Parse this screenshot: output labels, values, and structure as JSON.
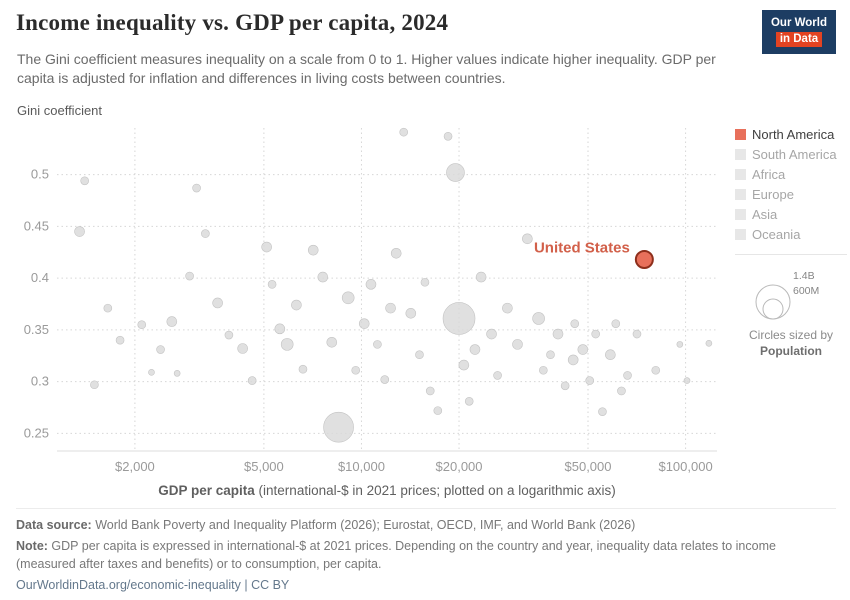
{
  "header": {
    "title": "Income inequality vs. GDP per capita, 2024",
    "subtitle": "The Gini coefficient measures inequality on a scale from 0 to 1. Higher values indicate higher inequality. GDP per capita is adjusted for inflation and differences in living costs between countries.",
    "logo": {
      "line1": "Our World",
      "line2": "in Data"
    }
  },
  "axes": {
    "y_label": "Gini coefficient",
    "x_label_bold": "GDP per capita",
    "x_label_rest": " (international-$ in 2021 prices; plotted on a logarithmic axis)"
  },
  "legend": {
    "items": [
      {
        "label": "North America",
        "color": "#e8705b",
        "active": true
      },
      {
        "label": "South America",
        "color": "#e7e7e7",
        "active": false
      },
      {
        "label": "Africa",
        "color": "#e7e7e7",
        "active": false
      },
      {
        "label": "Europe",
        "color": "#e7e7e7",
        "active": false
      },
      {
        "label": "Asia",
        "color": "#e7e7e7",
        "active": false
      },
      {
        "label": "Oceania",
        "color": "#e7e7e7",
        "active": false
      }
    ],
    "size_legend": {
      "labels": [
        "1.4B",
        "600M"
      ],
      "caption_line1": "Circles sized by",
      "caption_line2": "Population"
    }
  },
  "chart_data": {
    "type": "scatter",
    "title": "Income inequality vs. GDP per capita, 2024",
    "xlabel": "GDP per capita (international-$ in 2021 prices; plotted on a logarithmic axis)",
    "ylabel": "Gini coefficient",
    "x_scale": "log",
    "xlim": [
      1150,
      125000
    ],
    "ylim": [
      0.233,
      0.545
    ],
    "x_ticks": [
      2000,
      5000,
      10000,
      20000,
      50000,
      100000
    ],
    "x_tick_labels": [
      "$2,000",
      "$5,000",
      "$10,000",
      "$20,000",
      "$50,000",
      "$100,000"
    ],
    "y_ticks": [
      0.25,
      0.3,
      0.35,
      0.4,
      0.45,
      0.5
    ],
    "highlight": {
      "name": "United States",
      "gdp": 74600,
      "gini": 0.418,
      "r": 8.5,
      "color": "#e8705b"
    },
    "points": [
      [
        1400,
        0.494,
        4
      ],
      [
        1350,
        0.445,
        5
      ],
      [
        1650,
        0.371,
        4
      ],
      [
        1500,
        0.297,
        4
      ],
      [
        1800,
        0.34,
        4
      ],
      [
        2100,
        0.355,
        4
      ],
      [
        2600,
        0.358,
        5
      ],
      [
        2250,
        0.309,
        3
      ],
      [
        2700,
        0.308,
        3
      ],
      [
        2400,
        0.331,
        4
      ],
      [
        3100,
        0.487,
        4
      ],
      [
        3300,
        0.443,
        4
      ],
      [
        2950,
        0.402,
        4
      ],
      [
        3600,
        0.376,
        5
      ],
      [
        3900,
        0.345,
        4
      ],
      [
        4300,
        0.332,
        5
      ],
      [
        4600,
        0.301,
        4
      ],
      [
        5100,
        0.43,
        5
      ],
      [
        5300,
        0.394,
        4
      ],
      [
        5600,
        0.351,
        5
      ],
      [
        5900,
        0.336,
        6
      ],
      [
        6300,
        0.374,
        5
      ],
      [
        6600,
        0.312,
        4
      ],
      [
        7100,
        0.427,
        5
      ],
      [
        7600,
        0.401,
        5
      ],
      [
        8100,
        0.338,
        5
      ],
      [
        8500,
        0.256,
        15
      ],
      [
        9100,
        0.381,
        6
      ],
      [
        9600,
        0.311,
        4
      ],
      [
        10200,
        0.356,
        5
      ],
      [
        10700,
        0.394,
        5
      ],
      [
        11200,
        0.336,
        4
      ],
      [
        11800,
        0.302,
        4
      ],
      [
        12300,
        0.371,
        5
      ],
      [
        12800,
        0.424,
        5
      ],
      [
        13500,
        0.541,
        4
      ],
      [
        18500,
        0.537,
        4
      ],
      [
        14200,
        0.366,
        5
      ],
      [
        15100,
        0.326,
        4
      ],
      [
        15700,
        0.396,
        4
      ],
      [
        16300,
        0.291,
        4
      ],
      [
        17200,
        0.272,
        4
      ],
      [
        19500,
        0.502,
        9
      ],
      [
        20000,
        0.361,
        16
      ],
      [
        20700,
        0.316,
        5
      ],
      [
        21500,
        0.281,
        4
      ],
      [
        22400,
        0.331,
        5
      ],
      [
        23400,
        0.401,
        5
      ],
      [
        25200,
        0.346,
        5
      ],
      [
        26300,
        0.306,
        4
      ],
      [
        28200,
        0.371,
        5
      ],
      [
        30300,
        0.336,
        5
      ],
      [
        32500,
        0.438,
        5
      ],
      [
        35200,
        0.361,
        6
      ],
      [
        36400,
        0.311,
        4
      ],
      [
        38300,
        0.326,
        4
      ],
      [
        40400,
        0.346,
        5
      ],
      [
        42500,
        0.296,
        4
      ],
      [
        45000,
        0.321,
        5
      ],
      [
        45500,
        0.356,
        4
      ],
      [
        48200,
        0.331,
        5
      ],
      [
        50600,
        0.301,
        4
      ],
      [
        52800,
        0.346,
        4
      ],
      [
        55400,
        0.271,
        4
      ],
      [
        58600,
        0.326,
        5
      ],
      [
        60900,
        0.356,
        4
      ],
      [
        63400,
        0.291,
        4
      ],
      [
        66200,
        0.306,
        4
      ],
      [
        70800,
        0.346,
        4
      ],
      [
        80900,
        0.311,
        4
      ],
      [
        96000,
        0.336,
        3
      ],
      [
        101000,
        0.301,
        3
      ],
      [
        118000,
        0.337,
        3
      ]
    ]
  },
  "footer": {
    "source_label": "Data source:",
    "source_text": " World Bank Poverty and Inequality Platform (2026); Eurostat, OECD, IMF, and World Bank (2026)",
    "note_label": "Note:",
    "note_text": " GDP per capita is expressed in international-$ at 2021 prices. Depending on the country and year, inequality data relates to income (measured after taxes and benefits) or to consumption, per capita.",
    "link": "OurWorldinData.org/economic-inequality | CC BY"
  }
}
